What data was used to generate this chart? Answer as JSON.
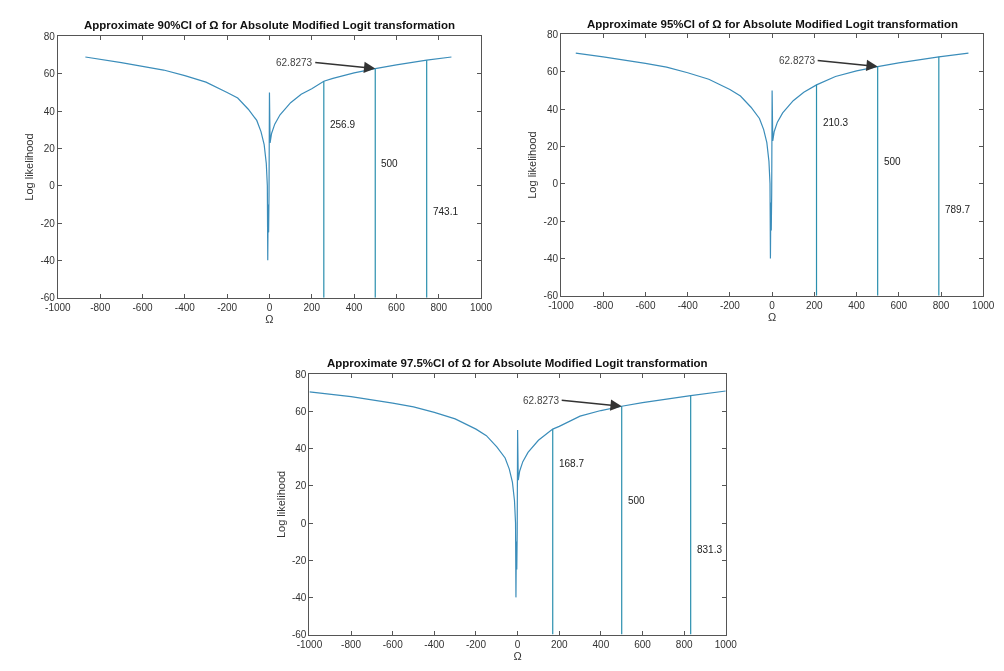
{
  "chart_data": [
    {
      "type": "line",
      "title": "Approximate 90%CI of Ω for Absolute Modified Logit transformation",
      "xlabel": "Ω",
      "ylabel": "Log likelihood",
      "xlim": [
        -1000,
        1000
      ],
      "ylim": [
        -60,
        80
      ],
      "xticks": [
        -1000,
        -800,
        -600,
        -400,
        -200,
        0,
        200,
        400,
        600,
        800,
        1000
      ],
      "yticks": [
        -60,
        -40,
        -20,
        0,
        20,
        40,
        60,
        80
      ],
      "marker": "none",
      "line_style": "solid",
      "series": [
        {
          "color": "#3b8dba",
          "x": [
            -870,
            -700,
            -600,
            -500,
            -400,
            -300,
            -200,
            -150,
            -100,
            -60,
            -40,
            -25,
            -15,
            -10,
            -8,
            -6,
            -4,
            -2,
            0,
            3,
            10,
            25,
            50,
            100,
            150,
            200,
            256.9,
            300,
            400,
            500,
            600,
            743.1,
            860
          ],
          "values": [
            69,
            66,
            64,
            62,
            59,
            55.5,
            50,
            47,
            41,
            35,
            29,
            22,
            12,
            0,
            -40,
            -10,
            -25,
            -5,
            50,
            23,
            28,
            33,
            38,
            44.5,
            49,
            52,
            56,
            57.5,
            60.5,
            62.8,
            64.8,
            67.3,
            69
          ]
        },
        {
          "color": "#2a8fae",
          "x": [
            256.9,
            256.9
          ],
          "values": [
            -60,
            56
          ]
        },
        {
          "color": "#2a8fae",
          "x": [
            500,
            500
          ],
          "values": [
            -60,
            62.8
          ]
        },
        {
          "color": "#2a8fae",
          "x": [
            743.1,
            743.1
          ],
          "values": [
            -60,
            67.3
          ]
        }
      ],
      "annotations": [
        {
          "text": "62.8273",
          "x": 500,
          "y": 62.8273
        },
        {
          "text": "256.9",
          "x": 256.9,
          "y": 33
        },
        {
          "text": "500",
          "x": 500,
          "y": 12
        },
        {
          "text": "743.1",
          "x": 743.1,
          "y": -14
        }
      ]
    },
    {
      "type": "line",
      "title": "Approximate 95%CI of Ω for Absolute Modified Logit transformation",
      "xlabel": "Ω",
      "ylabel": "Log likelihood",
      "xlim": [
        -1000,
        1000
      ],
      "ylim": [
        -60,
        80
      ],
      "xticks": [
        -1000,
        -800,
        -600,
        -400,
        -200,
        0,
        200,
        400,
        600,
        800,
        1000
      ],
      "yticks": [
        -60,
        -40,
        -20,
        0,
        20,
        40,
        60,
        80
      ],
      "marker": "none",
      "line_style": "solid",
      "series": [
        {
          "color": "#3b8dba",
          "x": [
            -930,
            -800,
            -600,
            -500,
            -400,
            -300,
            -200,
            -150,
            -100,
            -60,
            -40,
            -25,
            -15,
            -10,
            -8,
            -6,
            -4,
            -2,
            0,
            3,
            10,
            25,
            50,
            100,
            150,
            210.3,
            300,
            400,
            500,
            600,
            789.7,
            930
          ],
          "values": [
            70,
            68,
            64.5,
            62.5,
            59.5,
            56,
            50.5,
            47,
            41,
            35,
            29,
            22,
            12,
            0,
            -40,
            -10,
            -25,
            -5,
            50,
            23,
            28,
            33,
            38,
            44.5,
            49,
            53,
            57.5,
            60.5,
            62.8,
            64.8,
            68,
            70
          ]
        },
        {
          "color": "#2a8fae",
          "x": [
            210.3,
            210.3
          ],
          "values": [
            -60,
            53
          ]
        },
        {
          "color": "#2a8fae",
          "x": [
            500,
            500
          ],
          "values": [
            -60,
            62.8
          ]
        },
        {
          "color": "#2a8fae",
          "x": [
            789.7,
            789.7
          ],
          "values": [
            -60,
            68
          ]
        }
      ],
      "annotations": [
        {
          "text": "62.8273",
          "x": 500,
          "y": 62.8273
        },
        {
          "text": "210.3",
          "x": 210.3,
          "y": 33
        },
        {
          "text": "500",
          "x": 500,
          "y": 12
        },
        {
          "text": "789.7",
          "x": 789.7,
          "y": -14
        }
      ]
    },
    {
      "type": "line",
      "title": "Approximate 97.5%CI of Ω for Absolute Modified Logit transformation",
      "xlabel": "Ω",
      "ylabel": "Log likelihood",
      "xlim": [
        -1000,
        1000
      ],
      "ylim": [
        -60,
        80
      ],
      "xticks": [
        -1000,
        -800,
        -600,
        -400,
        -200,
        0,
        200,
        400,
        600,
        800,
        1000
      ],
      "yticks": [
        -60,
        -40,
        -20,
        0,
        20,
        40,
        60,
        80
      ],
      "marker": "none",
      "line_style": "solid",
      "series": [
        {
          "color": "#3b8dba",
          "x": [
            -1000,
            -800,
            -600,
            -500,
            -400,
            -300,
            -200,
            -150,
            -100,
            -60,
            -40,
            -25,
            -15,
            -10,
            -8,
            -6,
            -4,
            -2,
            0,
            3,
            10,
            25,
            50,
            100,
            168.7,
            200,
            300,
            400,
            500,
            600,
            831.3,
            1000
          ],
          "values": [
            70.5,
            68,
            64.5,
            62.5,
            59.5,
            56,
            50.5,
            47,
            41,
            35,
            29,
            22,
            12,
            0,
            -40,
            -10,
            -25,
            -5,
            50,
            23,
            28,
            33,
            38,
            44.5,
            50.5,
            52,
            57.5,
            60.5,
            62.8,
            64.8,
            68.5,
            71
          ]
        },
        {
          "color": "#2a8fae",
          "x": [
            168.7,
            168.7
          ],
          "values": [
            -60,
            50.5
          ]
        },
        {
          "color": "#2a8fae",
          "x": [
            500,
            500
          ],
          "values": [
            -60,
            62.8
          ]
        },
        {
          "color": "#2a8fae",
          "x": [
            831.3,
            831.3
          ],
          "values": [
            -60,
            68.5
          ]
        }
      ],
      "annotations": [
        {
          "text": "62.8273",
          "x": 500,
          "y": 62.8273
        },
        {
          "text": "168.7",
          "x": 168.7,
          "y": 32
        },
        {
          "text": "500",
          "x": 500,
          "y": 12
        },
        {
          "text": "831.3",
          "x": 831.3,
          "y": -14
        }
      ]
    }
  ]
}
